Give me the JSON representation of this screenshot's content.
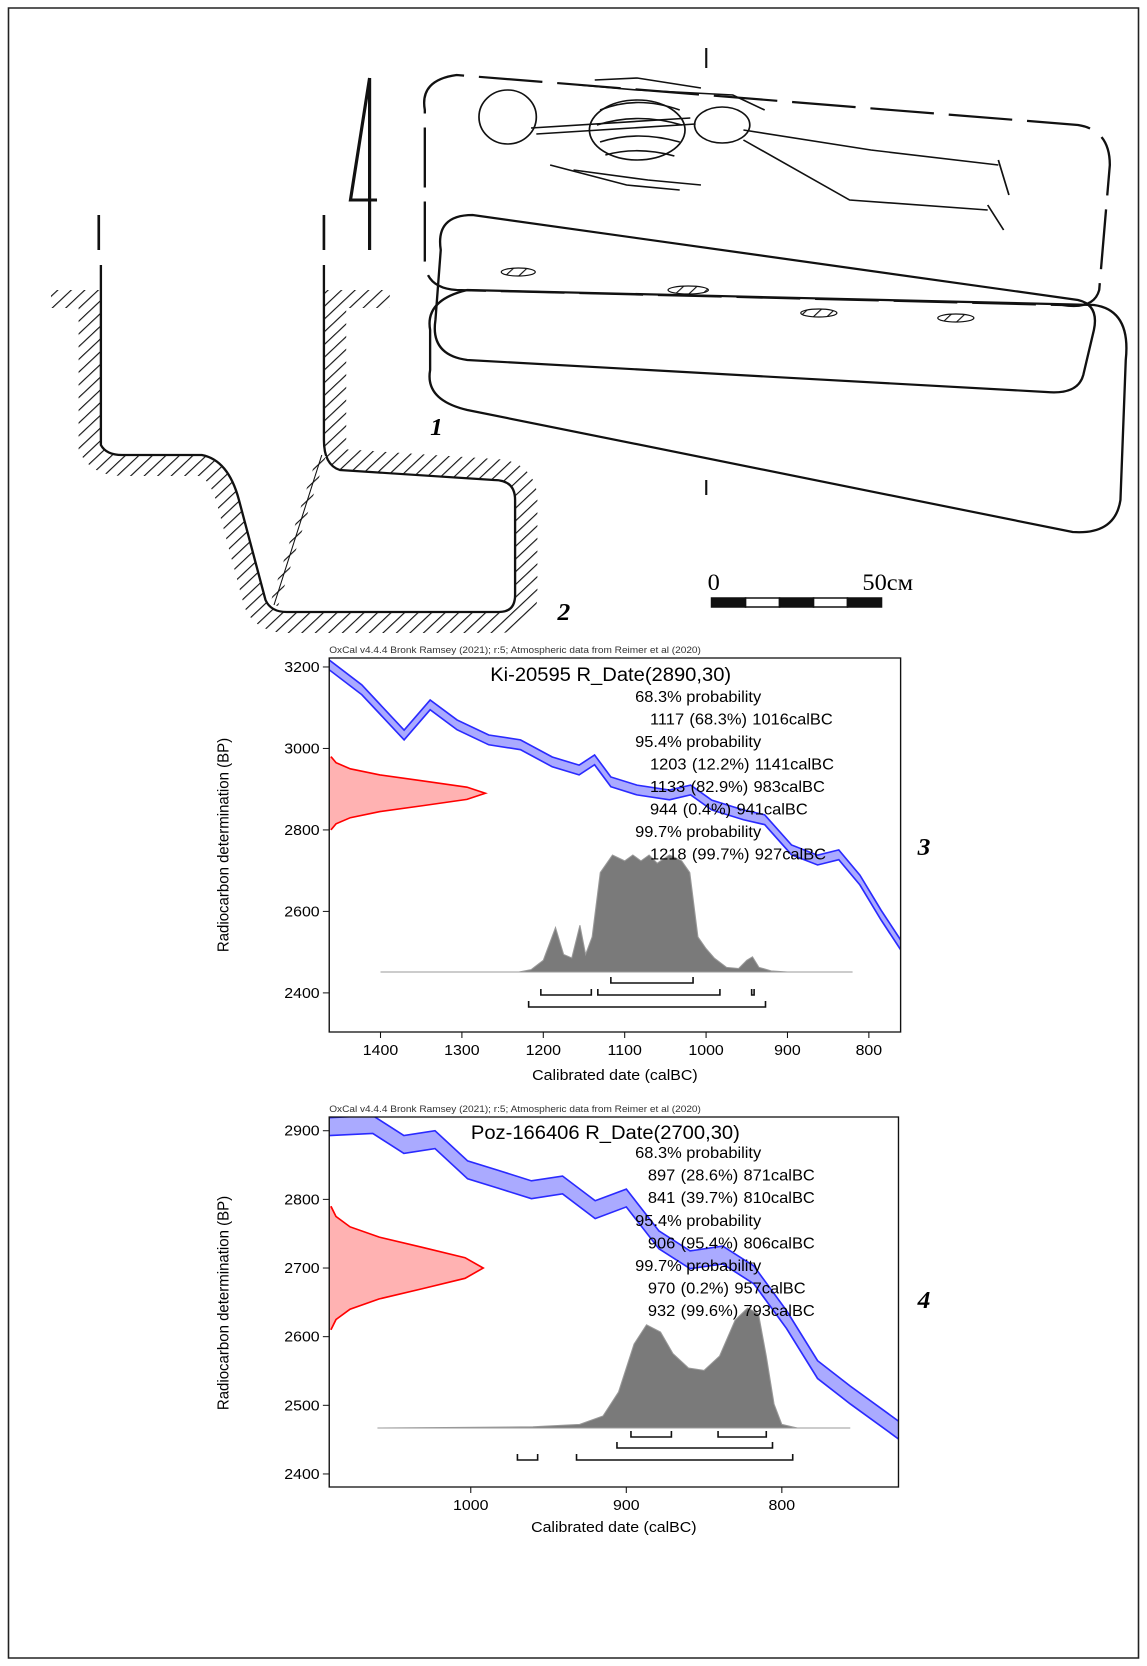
{
  "figure": {
    "drawing_labels": [
      "1",
      "2"
    ],
    "scale": {
      "start": "0",
      "end": "50см"
    }
  },
  "chart_data": [
    {
      "type": "calibration",
      "header": "OxCal v4.4.4 Bronk Ramsey (2021); r:5; Atmospheric data from Reimer et al (2020)",
      "title": "Ki-20595 R_Date(2890,30)",
      "x_label": "Calibrated date (calBC)",
      "y_label": "Radiocarbon determination (BP)",
      "panel_label": "3",
      "xlim": [
        1463,
        761
      ],
      "ylim": [
        2304,
        3222
      ],
      "xticks": [
        1400,
        1300,
        1200,
        1100,
        1000,
        900,
        800
      ],
      "yticks": [
        2400,
        2600,
        2800,
        3000,
        3200
      ],
      "curve_color": "#2a2aff",
      "measurement_color": "#ff0000",
      "posterior_color": "#7a7a7a",
      "curve": {
        "x": [
          1463,
          1423,
          1371,
          1339,
          1306,
          1267,
          1228,
          1189,
          1156,
          1137,
          1117,
          1085,
          1045,
          1019,
          993,
          954,
          928,
          895,
          863,
          837,
          811,
          785,
          761
        ],
        "upper": [
          3217,
          3156,
          3045,
          3119,
          3070,
          3033,
          3021,
          2979,
          2959,
          2984,
          2930,
          2910,
          2898,
          2910,
          2873,
          2849,
          2837,
          2763,
          2738,
          2751,
          2689,
          2603,
          2530
        ],
        "lower": [
          3193,
          3132,
          3021,
          3095,
          3046,
          3009,
          2997,
          2955,
          2935,
          2960,
          2906,
          2886,
          2874,
          2886,
          2849,
          2825,
          2813,
          2739,
          2714,
          2727,
          2665,
          2579,
          2506
        ]
      },
      "measurement": {
        "bp": [
          2800,
          2815,
          2830,
          2845,
          2860,
          2875,
          2890,
          2905,
          2920,
          2935,
          2950,
          2965,
          2980
        ],
        "density": [
          0.011,
          0.044,
          0.135,
          0.325,
          0.607,
          0.882,
          1,
          0.882,
          0.607,
          0.325,
          0.135,
          0.044,
          0.011
        ]
      },
      "posterior": {
        "x": [
          1400,
          1230,
          1215,
          1200,
          1185,
          1175,
          1165,
          1155,
          1148,
          1140,
          1130,
          1115,
          1100,
          1090,
          1080,
          1070,
          1060,
          1045,
          1030,
          1020,
          1010,
          1000,
          990,
          975,
          960,
          950,
          943,
          935,
          920,
          900,
          820
        ],
        "density": [
          0,
          0,
          0.02,
          0.1,
          0.38,
          0.15,
          0.12,
          0.4,
          0.15,
          0.3,
          0.85,
          1,
          0.95,
          1,
          0.95,
          1,
          0.93,
          1,
          0.95,
          0.85,
          0.3,
          0.2,
          0.12,
          0.04,
          0.03,
          0.1,
          0.13,
          0.04,
          0.01,
          0,
          0
        ]
      },
      "range_unit": "calBC",
      "probabilities": [
        {
          "label": "68.3% probability",
          "ranges": [
            {
              "from": 1117,
              "pct": "(68.3%)",
              "to": 1016
            }
          ]
        },
        {
          "label": "95.4% probability",
          "ranges": [
            {
              "from": 1203,
              "pct": "(12.2%)",
              "to": 1141
            },
            {
              "from": 1133,
              "pct": "(82.9%)",
              "to": 983
            },
            {
              "from": 944,
              "pct": "(0.4%)",
              "to": 941
            }
          ]
        },
        {
          "label": "99.7% probability",
          "ranges": [
            {
              "from": 1218,
              "pct": "(99.7%)",
              "to": 927
            }
          ]
        }
      ]
    },
    {
      "type": "calibration",
      "header": "OxCal v4.4.4 Bronk Ramsey (2021); r:5; Atmospheric data from Reimer et al (2020)",
      "title": "Poz-166406 R_Date(2700,30)",
      "x_label": "Calibrated date (calBC)",
      "y_label": "Radiocarbon determination (BP)",
      "panel_label": "4",
      "xlim": [
        1091,
        725
      ],
      "ylim": [
        2381,
        2920
      ],
      "xticks": [
        1000,
        900,
        800
      ],
      "yticks": [
        2400,
        2500,
        2600,
        2700,
        2800,
        2900
      ],
      "curve_color": "#2a2aff",
      "measurement_color": "#ff0000",
      "posterior_color": "#7a7a7a",
      "curve": {
        "x": [
          1091,
          1063,
          1043,
          1023,
          1002,
          982,
          961,
          941,
          920,
          900,
          879,
          859,
          838,
          818,
          797,
          777,
          756,
          725
        ],
        "upper": [
          2919,
          2922,
          2893,
          2900,
          2856,
          2842,
          2827,
          2834,
          2798,
          2815,
          2754,
          2725,
          2732,
          2703,
          2638,
          2565,
          2528,
          2477
        ],
        "lower": [
          2893,
          2896,
          2867,
          2874,
          2830,
          2816,
          2801,
          2808,
          2772,
          2789,
          2728,
          2699,
          2706,
          2677,
          2612,
          2539,
          2502,
          2451
        ]
      },
      "measurement": {
        "bp": [
          2610,
          2625,
          2640,
          2655,
          2670,
          2685,
          2700,
          2715,
          2730,
          2745,
          2760,
          2775,
          2790
        ],
        "density": [
          0.011,
          0.044,
          0.135,
          0.325,
          0.607,
          0.882,
          1,
          0.882,
          0.607,
          0.325,
          0.135,
          0.044,
          0.011
        ]
      },
      "posterior": {
        "x": [
          1060,
          960,
          930,
          915,
          905,
          895,
          887,
          878,
          870,
          860,
          850,
          840,
          830,
          822,
          815,
          810,
          805,
          800,
          790,
          756
        ],
        "density": [
          0,
          0.01,
          0.03,
          0.1,
          0.3,
          0.7,
          0.86,
          0.8,
          0.62,
          0.5,
          0.48,
          0.6,
          0.9,
          1,
          0.95,
          0.6,
          0.2,
          0.03,
          0,
          0
        ]
      },
      "range_unit": "calBC",
      "probabilities": [
        {
          "label": "68.3% probability",
          "ranges": [
            {
              "from": 897,
              "pct": "(28.6%)",
              "to": 871
            },
            {
              "from": 841,
              "pct": "(39.7%)",
              "to": 810
            }
          ]
        },
        {
          "label": "95.4% probability",
          "ranges": [
            {
              "from": 906,
              "pct": "(95.4%)",
              "to": 806
            }
          ]
        },
        {
          "label": "99.7% probability",
          "ranges": [
            {
              "from": 970,
              "pct": "(0.2%)",
              "to": 957
            },
            {
              "from": 932,
              "pct": "(99.6%)",
              "to": 793
            }
          ]
        }
      ]
    }
  ]
}
